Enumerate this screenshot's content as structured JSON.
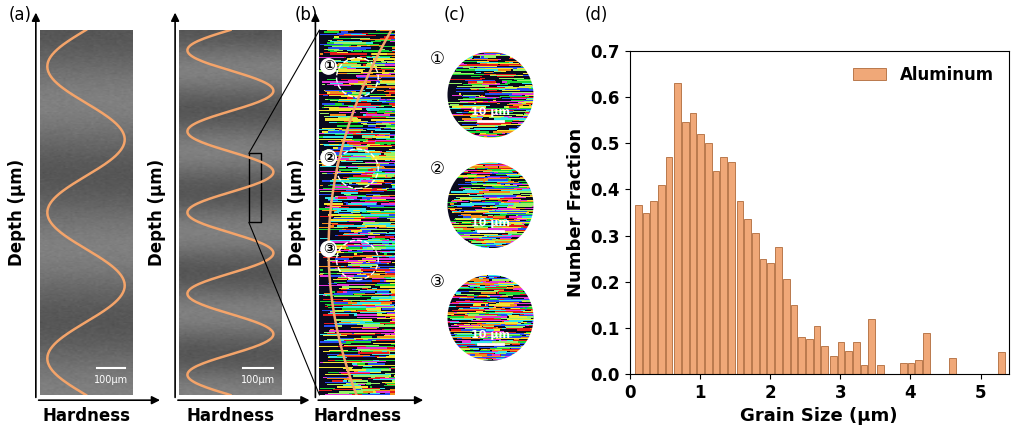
{
  "panels": {
    "a": {
      "label": "(a)",
      "y_label": "Depth (μm)",
      "x_label": "Hardness",
      "scale_bar": "100μm"
    },
    "b": {
      "label": "(b)",
      "y_label": "Depth (μm)",
      "x_label": "Hardness",
      "regions": [
        "①",
        "②",
        "③"
      ]
    },
    "c": {
      "label": "(c)",
      "regions": [
        "①",
        "②",
        "③"
      ],
      "scale_bar": "10 μm"
    }
  },
  "chart_data": {
    "type": "bar",
    "title": "(d)",
    "x_label": "Grain Size (μm)",
    "y_label": "Number Fraction",
    "x": [
      0.12,
      0.23,
      0.34,
      0.45,
      0.56,
      0.68,
      0.79,
      0.9,
      1.01,
      1.12,
      1.23,
      1.34,
      1.45,
      1.57,
      1.68,
      1.79,
      1.9,
      2.01,
      2.12,
      2.23,
      2.34,
      2.45,
      2.56,
      2.67,
      2.78,
      2.9,
      3.01,
      3.12,
      3.23,
      3.34,
      3.45,
      3.57,
      3.9,
      4.01,
      4.12,
      4.23,
      4.6,
      5.3
    ],
    "series": [
      {
        "name": "Aluminum",
        "color": "#f0a878",
        "values": [
          0.367,
          0.35,
          0.375,
          0.41,
          0.47,
          0.63,
          0.545,
          0.565,
          0.52,
          0.5,
          0.44,
          0.47,
          0.46,
          0.375,
          0.335,
          0.305,
          0.25,
          0.24,
          0.275,
          0.205,
          0.15,
          0.08,
          0.075,
          0.105,
          0.06,
          0.04,
          0.07,
          0.05,
          0.07,
          0.02,
          0.12,
          0.02,
          0.025,
          0.025,
          0.03,
          0.09,
          0.035,
          0.048
        ]
      }
    ],
    "xlim": [
      0,
      5.4
    ],
    "xticks": [
      0,
      1,
      2,
      3,
      4,
      5
    ],
    "ylim": [
      0.0,
      0.7
    ],
    "yticks": [
      0.0,
      0.1,
      0.2,
      0.3,
      0.4,
      0.5,
      0.6,
      0.7
    ],
    "legend": "upper right"
  }
}
